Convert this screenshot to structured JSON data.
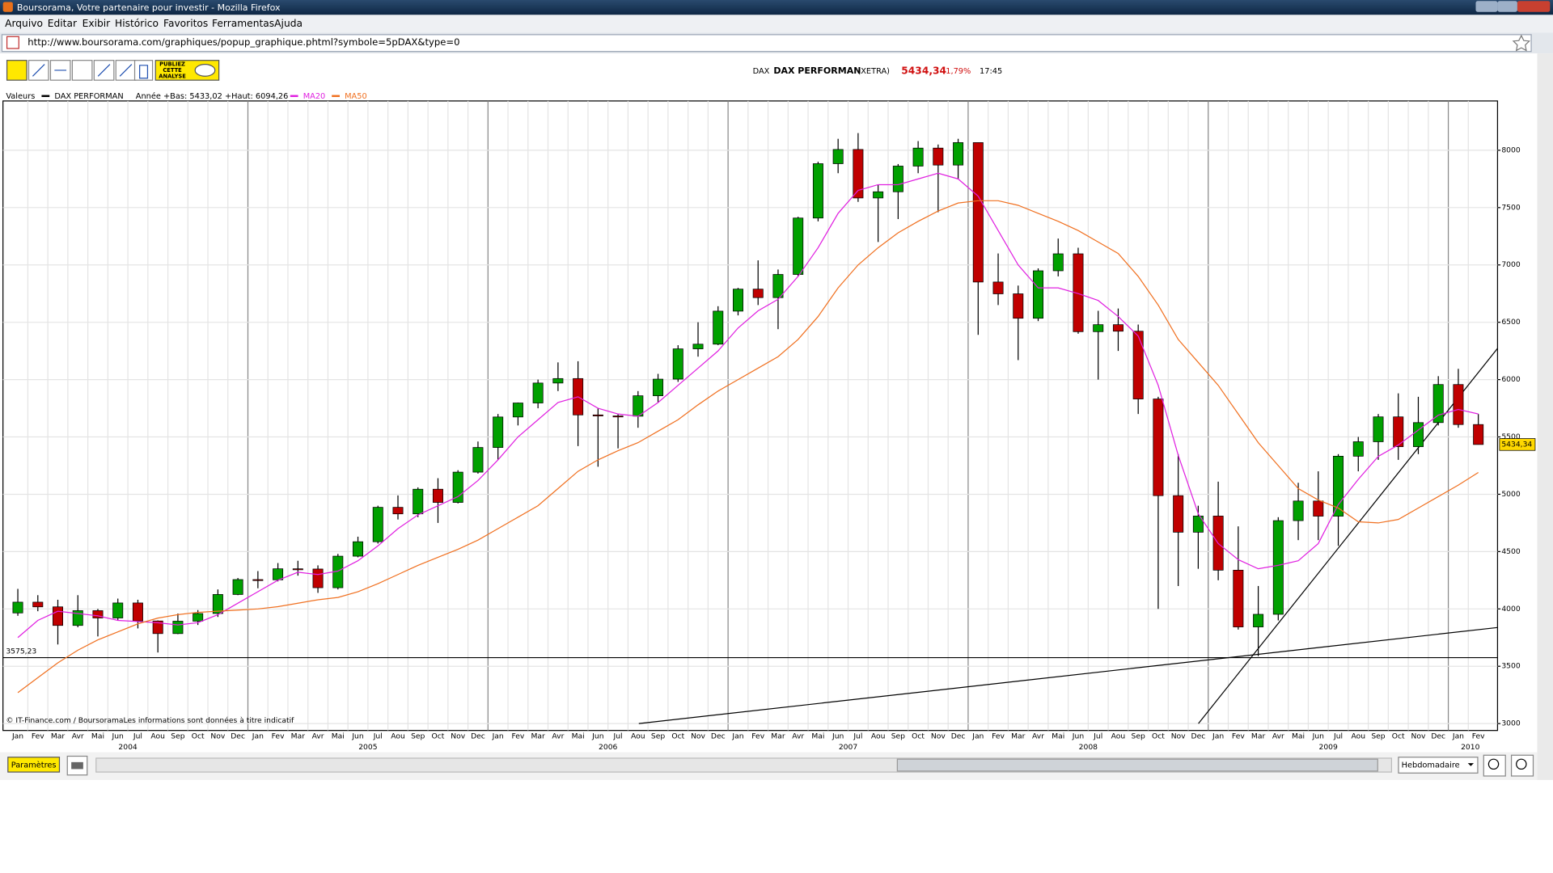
{
  "window": {
    "title": "Boursorama, Votre partenaire pour investir - Mozilla Firefox",
    "menu": [
      "Arquivo",
      "Editar",
      "Exibir",
      "Histórico",
      "Favoritos",
      "Ferramentas",
      "Ajuda"
    ],
    "url": "http://www.boursorama.com/graphiques/popup_graphique.phtml?symbole=5pDAX&type=0"
  },
  "toolbar": {
    "publish_button": [
      "PUBLIEZ",
      "CETTE",
      "ANALYSE"
    ]
  },
  "header": {
    "exchange_code": "DAX",
    "name": "DAX PERFORMAN",
    "market": "(XETRA)",
    "last": "5434,34",
    "change": "-1,79%",
    "time": "17:45"
  },
  "legend": {
    "label": "Valeurs",
    "range": "Année +Bas: 5433,02 +Haut: 6094,26"
  },
  "footer": {
    "source": "© IT-Finance.com / BoursoramaLes informations sont données à titre indicatif",
    "settings_button": "Paramètres",
    "period": "Hebdomadaire"
  },
  "chart_data": {
    "type": "candlestick",
    "categories": [
      "Jan",
      "Fev",
      "Mar",
      "Avr",
      "Mai",
      "Jun",
      "Jul",
      "Aou",
      "Sep",
      "Oct",
      "Nov",
      "Dec",
      "Jan",
      "Fev",
      "Mar",
      "Avr",
      "Mai",
      "Jun",
      "Jul",
      "Aou",
      "Sep",
      "Oct",
      "Nov",
      "Dec",
      "Jan",
      "Fev",
      "Mar",
      "Avr",
      "Mai",
      "Jun",
      "Jul",
      "Aou",
      "Sep",
      "Oct",
      "Nov",
      "Dec",
      "Jan",
      "Fev",
      "Mar",
      "Avr",
      "Mai",
      "Jun",
      "Jul",
      "Aou",
      "Sep",
      "Oct",
      "Nov",
      "Dec",
      "Jan",
      "Fev",
      "Mar",
      "Avr",
      "Mai",
      "Jun",
      "Jul",
      "Aou",
      "Sep",
      "Oct",
      "Nov",
      "Dec",
      "Jan",
      "Fev",
      "Mar",
      "Avr",
      "Mai",
      "Jun",
      "Jul",
      "Aou",
      "Sep",
      "Oct",
      "Nov",
      "Dec",
      "Jan",
      "Fev"
    ],
    "year_labels": [
      "2004",
      "2005",
      "2006",
      "2007",
      "2008",
      "2009",
      "2010"
    ],
    "price_name": "DAX PERFORMAN",
    "up_color": "#00a000",
    "down_color": "#c00000",
    "open": [
      3965,
      4059,
      4018,
      3856,
      3985,
      3921,
      4052,
      3895,
      3785,
      3893,
      3960,
      4126,
      4256,
      4254,
      4350,
      4348,
      4185,
      4460,
      4586,
      4886,
      4829,
      5044,
      4929,
      5193,
      5408,
      5674,
      5796,
      5970,
      6009,
      5692,
      5683,
      5681,
      5859,
      6004,
      6268,
      6309,
      6597,
      6789,
      6715,
      6917,
      7409,
      7883,
      8007,
      7584,
      7638,
      7862,
      8019,
      7871,
      8067,
      6851,
      6748,
      6535,
      6949,
      7097,
      6418,
      6479,
      6422,
      5831,
      4988,
      4669,
      4810,
      4338,
      3843,
      3953,
      4770,
      4941,
      4809,
      5332,
      5458,
      5675,
      5415,
      5625,
      5957,
      5608
    ],
    "high": [
      4175,
      4120,
      4080,
      4120,
      4000,
      4090,
      4080,
      3900,
      3960,
      3990,
      4170,
      4270,
      4330,
      4400,
      4420,
      4380,
      4480,
      4630,
      4900,
      4990,
      5060,
      5140,
      5210,
      5460,
      5700,
      5800,
      6000,
      6150,
      6160,
      5750,
      5700,
      5900,
      6050,
      6300,
      6500,
      6640,
      6800,
      7040,
      6960,
      7420,
      7900,
      8100,
      8150,
      7700,
      7880,
      8080,
      8050,
      8100,
      8070,
      7100,
      6820,
      6970,
      7230,
      7150,
      6600,
      6620,
      6480,
      5850,
      5350,
      4900,
      5110,
      4720,
      4200,
      4800,
      5100,
      5200,
      5350,
      5500,
      5700,
      5880,
      5850,
      6030,
      6094,
      5700
    ],
    "low": [
      3940,
      3980,
      3690,
      3840,
      3760,
      3900,
      3830,
      3620,
      3780,
      3860,
      3930,
      4120,
      4180,
      4240,
      4290,
      4140,
      4170,
      4450,
      4570,
      4780,
      4800,
      4750,
      4920,
      5180,
      5300,
      5600,
      5750,
      5900,
      5420,
      5240,
      5400,
      5580,
      5800,
      5980,
      6200,
      6300,
      6560,
      6650,
      6440,
      6900,
      7380,
      7800,
      7550,
      7200,
      7400,
      7800,
      7460,
      7750,
      6390,
      6650,
      6170,
      6510,
      6900,
      6400,
      6000,
      6250,
      5700,
      4000,
      4200,
      4350,
      4250,
      3820,
      3588,
      3900,
      4600,
      4600,
      4550,
      5200,
      5300,
      5300,
      5350,
      5600,
      5580,
      5433
    ],
    "close": [
      4059,
      4018,
      3856,
      3985,
      3921,
      4052,
      3895,
      3785,
      3893,
      3960,
      4126,
      4256,
      4254,
      4350,
      4348,
      4185,
      4460,
      4586,
      4886,
      4829,
      5044,
      4929,
      5193,
      5408,
      5674,
      5796,
      5970,
      6009,
      5692,
      5683,
      5681,
      5859,
      6004,
      6268,
      6309,
      6597,
      6789,
      6715,
      6917,
      7409,
      7883,
      8007,
      7584,
      7638,
      7862,
      8019,
      7871,
      8067,
      6851,
      6748,
      6535,
      6949,
      7097,
      6418,
      6479,
      6422,
      5831,
      4988,
      4669,
      4810,
      4338,
      3843,
      3953,
      4770,
      4941,
      4809,
      5332,
      5458,
      5675,
      5415,
      5625,
      5957,
      5608,
      5434
    ],
    "series": [
      {
        "name": "MA20",
        "color": "#e020e0",
        "values": [
          3750,
          3900,
          3980,
          3960,
          3940,
          3900,
          3890,
          3880,
          3860,
          3880,
          3950,
          4050,
          4150,
          4250,
          4320,
          4300,
          4330,
          4420,
          4550,
          4700,
          4820,
          4900,
          4980,
          5120,
          5300,
          5500,
          5650,
          5800,
          5850,
          5750,
          5700,
          5680,
          5800,
          5950,
          6100,
          6250,
          6450,
          6600,
          6700,
          6900,
          7150,
          7450,
          7650,
          7700,
          7700,
          7750,
          7800,
          7750,
          7600,
          7300,
          7000,
          6800,
          6800,
          6750,
          6690,
          6550,
          6380,
          5950,
          5340,
          4830,
          4570,
          4430,
          4350,
          4380,
          4420,
          4570,
          4910,
          5130,
          5330,
          5430,
          5560,
          5690,
          5740,
          5700
        ]
      },
      {
        "name": "MA50",
        "color": "#f07020",
        "values": [
          3270,
          3400,
          3530,
          3640,
          3730,
          3800,
          3870,
          3920,
          3950,
          3970,
          3980,
          3990,
          4000,
          4020,
          4050,
          4080,
          4100,
          4150,
          4220,
          4300,
          4380,
          4450,
          4520,
          4600,
          4700,
          4800,
          4900,
          5050,
          5200,
          5300,
          5380,
          5450,
          5550,
          5650,
          5780,
          5900,
          6000,
          6100,
          6200,
          6350,
          6550,
          6800,
          7000,
          7150,
          7280,
          7380,
          7470,
          7540,
          7560,
          7560,
          7520,
          7450,
          7380,
          7300,
          7200,
          7100,
          6900,
          6650,
          6350,
          6150,
          5950,
          5700,
          5450,
          5250,
          5050,
          4950,
          4880,
          4760,
          4750,
          4780,
          4880,
          4980,
          5080,
          5190
        ]
      }
    ],
    "support_level": {
      "value": 3575.23,
      "label": "3575,23"
    },
    "ylim": [
      2940,
      8430
    ],
    "yticks": [
      3000,
      3500,
      4000,
      4500,
      5000,
      5500,
      6000,
      6500,
      7000,
      7500,
      8000
    ],
    "grid": true
  }
}
